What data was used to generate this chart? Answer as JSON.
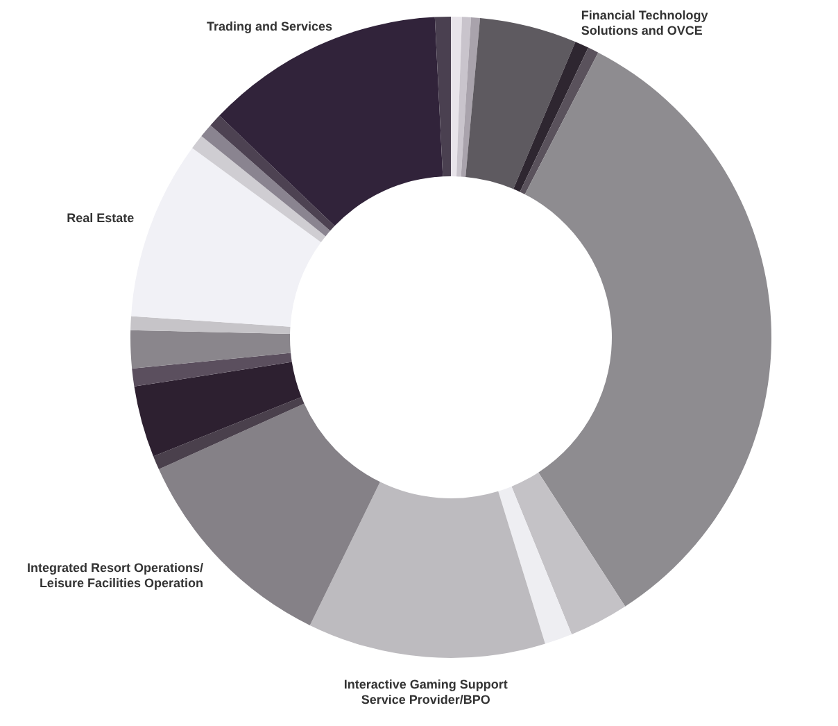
{
  "chart_data": {
    "type": "donut",
    "categories": [
      null,
      null,
      null,
      "Financial Technology Solutions and OVCE",
      null,
      null,
      null,
      null,
      null,
      "Interactive Gaming Support Service Provider/BPO",
      "Integrated Resort Operations/ Leisure Facilities Operation",
      null,
      null,
      null,
      null,
      null,
      "Real Estate",
      null,
      null,
      null,
      "Trading and Services",
      null
    ],
    "values": [
      0.55,
      0.45,
      0.45,
      4.9,
      0.7,
      0.55,
      33.25,
      3.0,
      1.4,
      12.0,
      11.0,
      0.7,
      3.6,
      0.9,
      1.9,
      0.7,
      9.0,
      0.75,
      0.7,
      0.65,
      12.05,
      0.8
    ],
    "colors": [
      "#e8e4ea",
      "#c9c4cc",
      "#a9a3ac",
      "#5e5a60",
      "#2e2630",
      "#5a525c",
      "#8e8c90",
      "#c4c2c6",
      "#eeeef2",
      "#bdbbbf",
      "#858187",
      "#4a404c",
      "#2d2030",
      "#5b4f5e",
      "#8a868c",
      "#c6c4c8",
      "#f1f1f6",
      "#cfcdd2",
      "#8a8490",
      "#4d4252",
      "#31233a",
      "#4a4050"
    ]
  }
}
